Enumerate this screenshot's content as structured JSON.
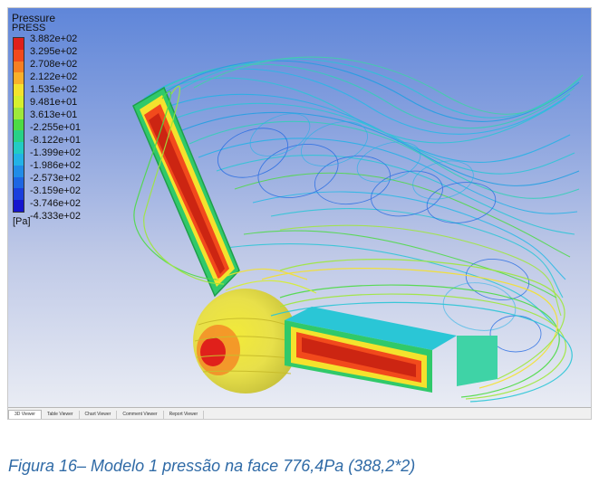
{
  "legend": {
    "title": "Pressure",
    "variable": "PRESS",
    "ticks": [
      "3.882e+02",
      "3.295e+02",
      "2.708e+02",
      "2.122e+02",
      "1.535e+02",
      "9.481e+01",
      "3.613e+01",
      "-2.255e+01",
      "-8.122e+01",
      "-1.399e+02",
      "-1.986e+02",
      "-2.573e+02",
      "-3.159e+02",
      "-3.746e+02",
      "-4.333e+02"
    ],
    "colors": [
      "#e0201b",
      "#f24a1c",
      "#f67f22",
      "#f9b02a",
      "#f4e22d",
      "#d6ef2e",
      "#9ee83a",
      "#4ddb45",
      "#27d187",
      "#22cbc4",
      "#23b2e6",
      "#218ce7",
      "#1d66e3",
      "#1a3fdd",
      "#1515cf"
    ],
    "unit": "[Pa]"
  },
  "tabs": [
    "3D Viewer",
    "Table Viewer",
    "Chart Viewer",
    "Comment Viewer",
    "Report Viewer"
  ],
  "active_tab": "3D Viewer",
  "caption": "Figura 16– Modelo 1 pressão na face 776,4Pa (388,2*2)"
}
